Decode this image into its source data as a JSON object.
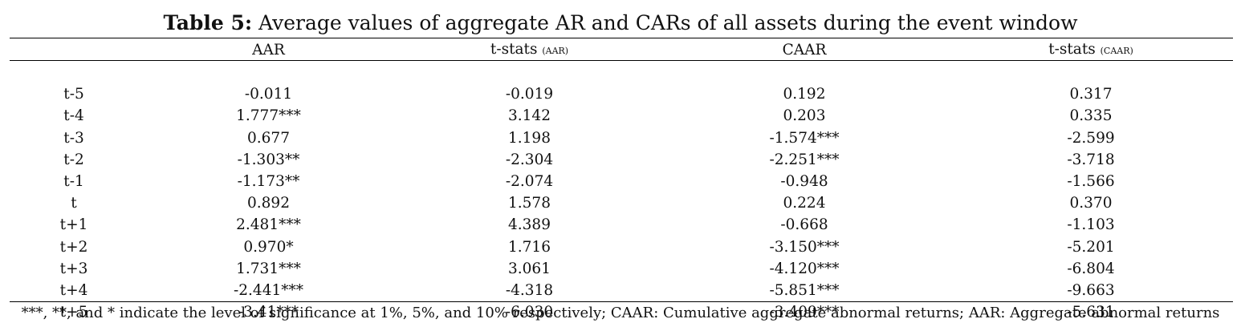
{
  "title": {
    "label": "Table 5:",
    "text": " Average values of aggregate AR and CARs of all assets during the event window"
  },
  "table": {
    "headers": [
      {
        "main": "",
        "sub": ""
      },
      {
        "main": "AAR",
        "sub": ""
      },
      {
        "main": "t-stats ",
        "sub": "(AAR)"
      },
      {
        "main": "CAAR",
        "sub": ""
      },
      {
        "main": "t-stats ",
        "sub": "(CAAR)"
      }
    ],
    "rows": [
      [
        "t-5",
        "-0.011",
        "-0.019",
        "0.192",
        "0.317"
      ],
      [
        "t-4",
        "1.777***",
        "3.142",
        "0.203",
        "0.335"
      ],
      [
        "t-3",
        "0.677",
        "1.198",
        "-1.574***",
        "-2.599"
      ],
      [
        "t-2",
        "-1.303**",
        "-2.304",
        "-2.251***",
        "-3.718"
      ],
      [
        "t-1",
        "-1.173**",
        "-2.074",
        "-0.948",
        "-1.566"
      ],
      [
        "t",
        "0.892",
        "1.578",
        "0.224",
        "0.370"
      ],
      [
        "t+1",
        "2.481***",
        "4.389",
        "-0.668",
        "-1.103"
      ],
      [
        "t+2",
        "0.970*",
        "1.716",
        "-3.150***",
        "-5.201"
      ],
      [
        "t+3",
        "1.731***",
        "3.061",
        "-4.120***",
        "-6.804"
      ],
      [
        "t+4",
        "-2.441***",
        "-4.318",
        "-5.851***",
        "-9.663"
      ],
      [
        "t+5",
        "-3.41***",
        "-6.030",
        "-3.409***",
        "-5.631"
      ]
    ]
  },
  "footnote": "***, **, and * indicate the level of significance at 1%, 5%, and 10% respectively; CAAR: Cumulative aggregate abnormal returns; AAR: Aggregate abnormal returns"
}
